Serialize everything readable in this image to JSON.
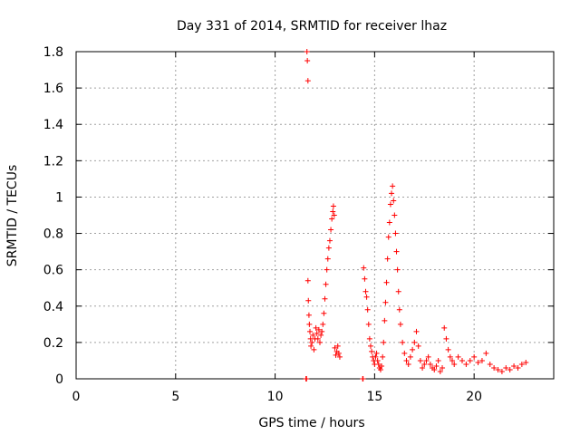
{
  "chart_data": {
    "type": "scatter",
    "title": "Day 331 of 2014, SRMTID for receiver lhaz",
    "xlabel": "GPS time / hours",
    "ylabel": "SRMTID / TECUs",
    "xlim": [
      0,
      24
    ],
    "ylim": [
      0,
      1.8
    ],
    "xticks": [
      0,
      5,
      10,
      15,
      20
    ],
    "yticks": [
      0,
      0.2,
      0.4,
      0.6,
      0.8,
      1,
      1.2,
      1.4,
      1.6,
      1.8
    ],
    "xtick_labels": [
      "0",
      "5",
      "10",
      "15",
      "20"
    ],
    "ytick_labels": [
      "0",
      "0.2",
      "0.4",
      "0.6",
      "0.8",
      "1",
      "1.2",
      "1.4",
      "1.6",
      "1.8"
    ],
    "grid": true,
    "marker": "+",
    "color": "#ff0000",
    "series": [
      {
        "x": [
          11.6,
          11.62,
          11.65,
          11.65,
          11.67,
          11.7,
          11.72,
          11.75,
          11.78,
          11.8,
          11.85,
          11.9,
          11.95,
          12.0,
          12.05,
          12.1,
          12.15,
          12.2,
          12.25,
          12.3,
          12.35,
          12.4,
          12.45,
          12.5,
          12.55,
          12.6,
          12.65,
          12.7,
          12.75,
          12.8,
          12.85,
          12.9,
          12.93,
          12.97,
          13.0,
          13.05,
          13.1,
          13.15,
          13.2,
          13.25,
          14.45,
          14.5,
          14.55,
          14.6,
          14.65,
          14.7,
          14.75,
          14.8,
          14.85,
          14.9,
          14.95,
          15.0,
          15.05,
          15.1,
          15.15,
          15.2,
          15.25,
          15.3,
          15.35,
          15.4,
          15.45,
          15.5,
          15.55,
          15.6,
          15.65,
          15.7,
          15.75,
          15.8,
          15.85,
          15.9,
          15.95,
          16.0,
          16.05,
          16.1,
          16.15,
          16.2,
          16.25,
          16.3,
          16.4,
          16.5,
          16.6,
          16.7,
          16.8,
          16.9,
          17.0,
          17.1,
          17.2,
          17.3,
          17.4,
          17.5,
          17.6,
          17.7,
          17.8,
          17.9,
          18.0,
          18.1,
          18.2,
          18.3,
          18.4,
          18.5,
          18.6,
          18.7,
          18.8,
          18.9,
          19.0,
          19.2,
          19.4,
          19.6,
          19.8,
          20.0,
          20.2,
          20.4,
          20.6,
          20.8,
          21.0,
          21.2,
          21.4,
          21.6,
          21.8,
          22.0,
          22.2,
          22.4,
          22.6,
          11.55,
          11.58,
          14.4,
          14.42
        ],
        "y": [
          1.8,
          1.75,
          1.64,
          0.54,
          0.43,
          0.35,
          0.3,
          0.26,
          0.22,
          0.18,
          0.2,
          0.24,
          0.16,
          0.22,
          0.28,
          0.25,
          0.22,
          0.27,
          0.2,
          0.24,
          0.26,
          0.3,
          0.36,
          0.44,
          0.52,
          0.6,
          0.66,
          0.72,
          0.76,
          0.82,
          0.88,
          0.92,
          0.95,
          0.9,
          0.17,
          0.13,
          0.15,
          0.18,
          0.14,
          0.12,
          0.61,
          0.55,
          0.48,
          0.45,
          0.38,
          0.3,
          0.22,
          0.18,
          0.15,
          0.12,
          0.1,
          0.08,
          0.12,
          0.14,
          0.1,
          0.08,
          0.06,
          0.05,
          0.07,
          0.12,
          0.2,
          0.32,
          0.42,
          0.53,
          0.66,
          0.78,
          0.86,
          0.96,
          1.02,
          1.06,
          0.98,
          0.9,
          0.8,
          0.7,
          0.6,
          0.48,
          0.38,
          0.3,
          0.2,
          0.14,
          0.1,
          0.08,
          0.12,
          0.16,
          0.2,
          0.26,
          0.18,
          0.1,
          0.06,
          0.08,
          0.1,
          0.12,
          0.08,
          0.06,
          0.05,
          0.07,
          0.1,
          0.04,
          0.06,
          0.28,
          0.22,
          0.16,
          0.12,
          0.1,
          0.08,
          0.12,
          0.1,
          0.08,
          0.1,
          0.12,
          0.09,
          0.1,
          0.14,
          0.08,
          0.06,
          0.05,
          0.04,
          0.06,
          0.05,
          0.07,
          0.06,
          0.08,
          0.09,
          0.0,
          0.0,
          0.0,
          0.0
        ]
      }
    ]
  }
}
